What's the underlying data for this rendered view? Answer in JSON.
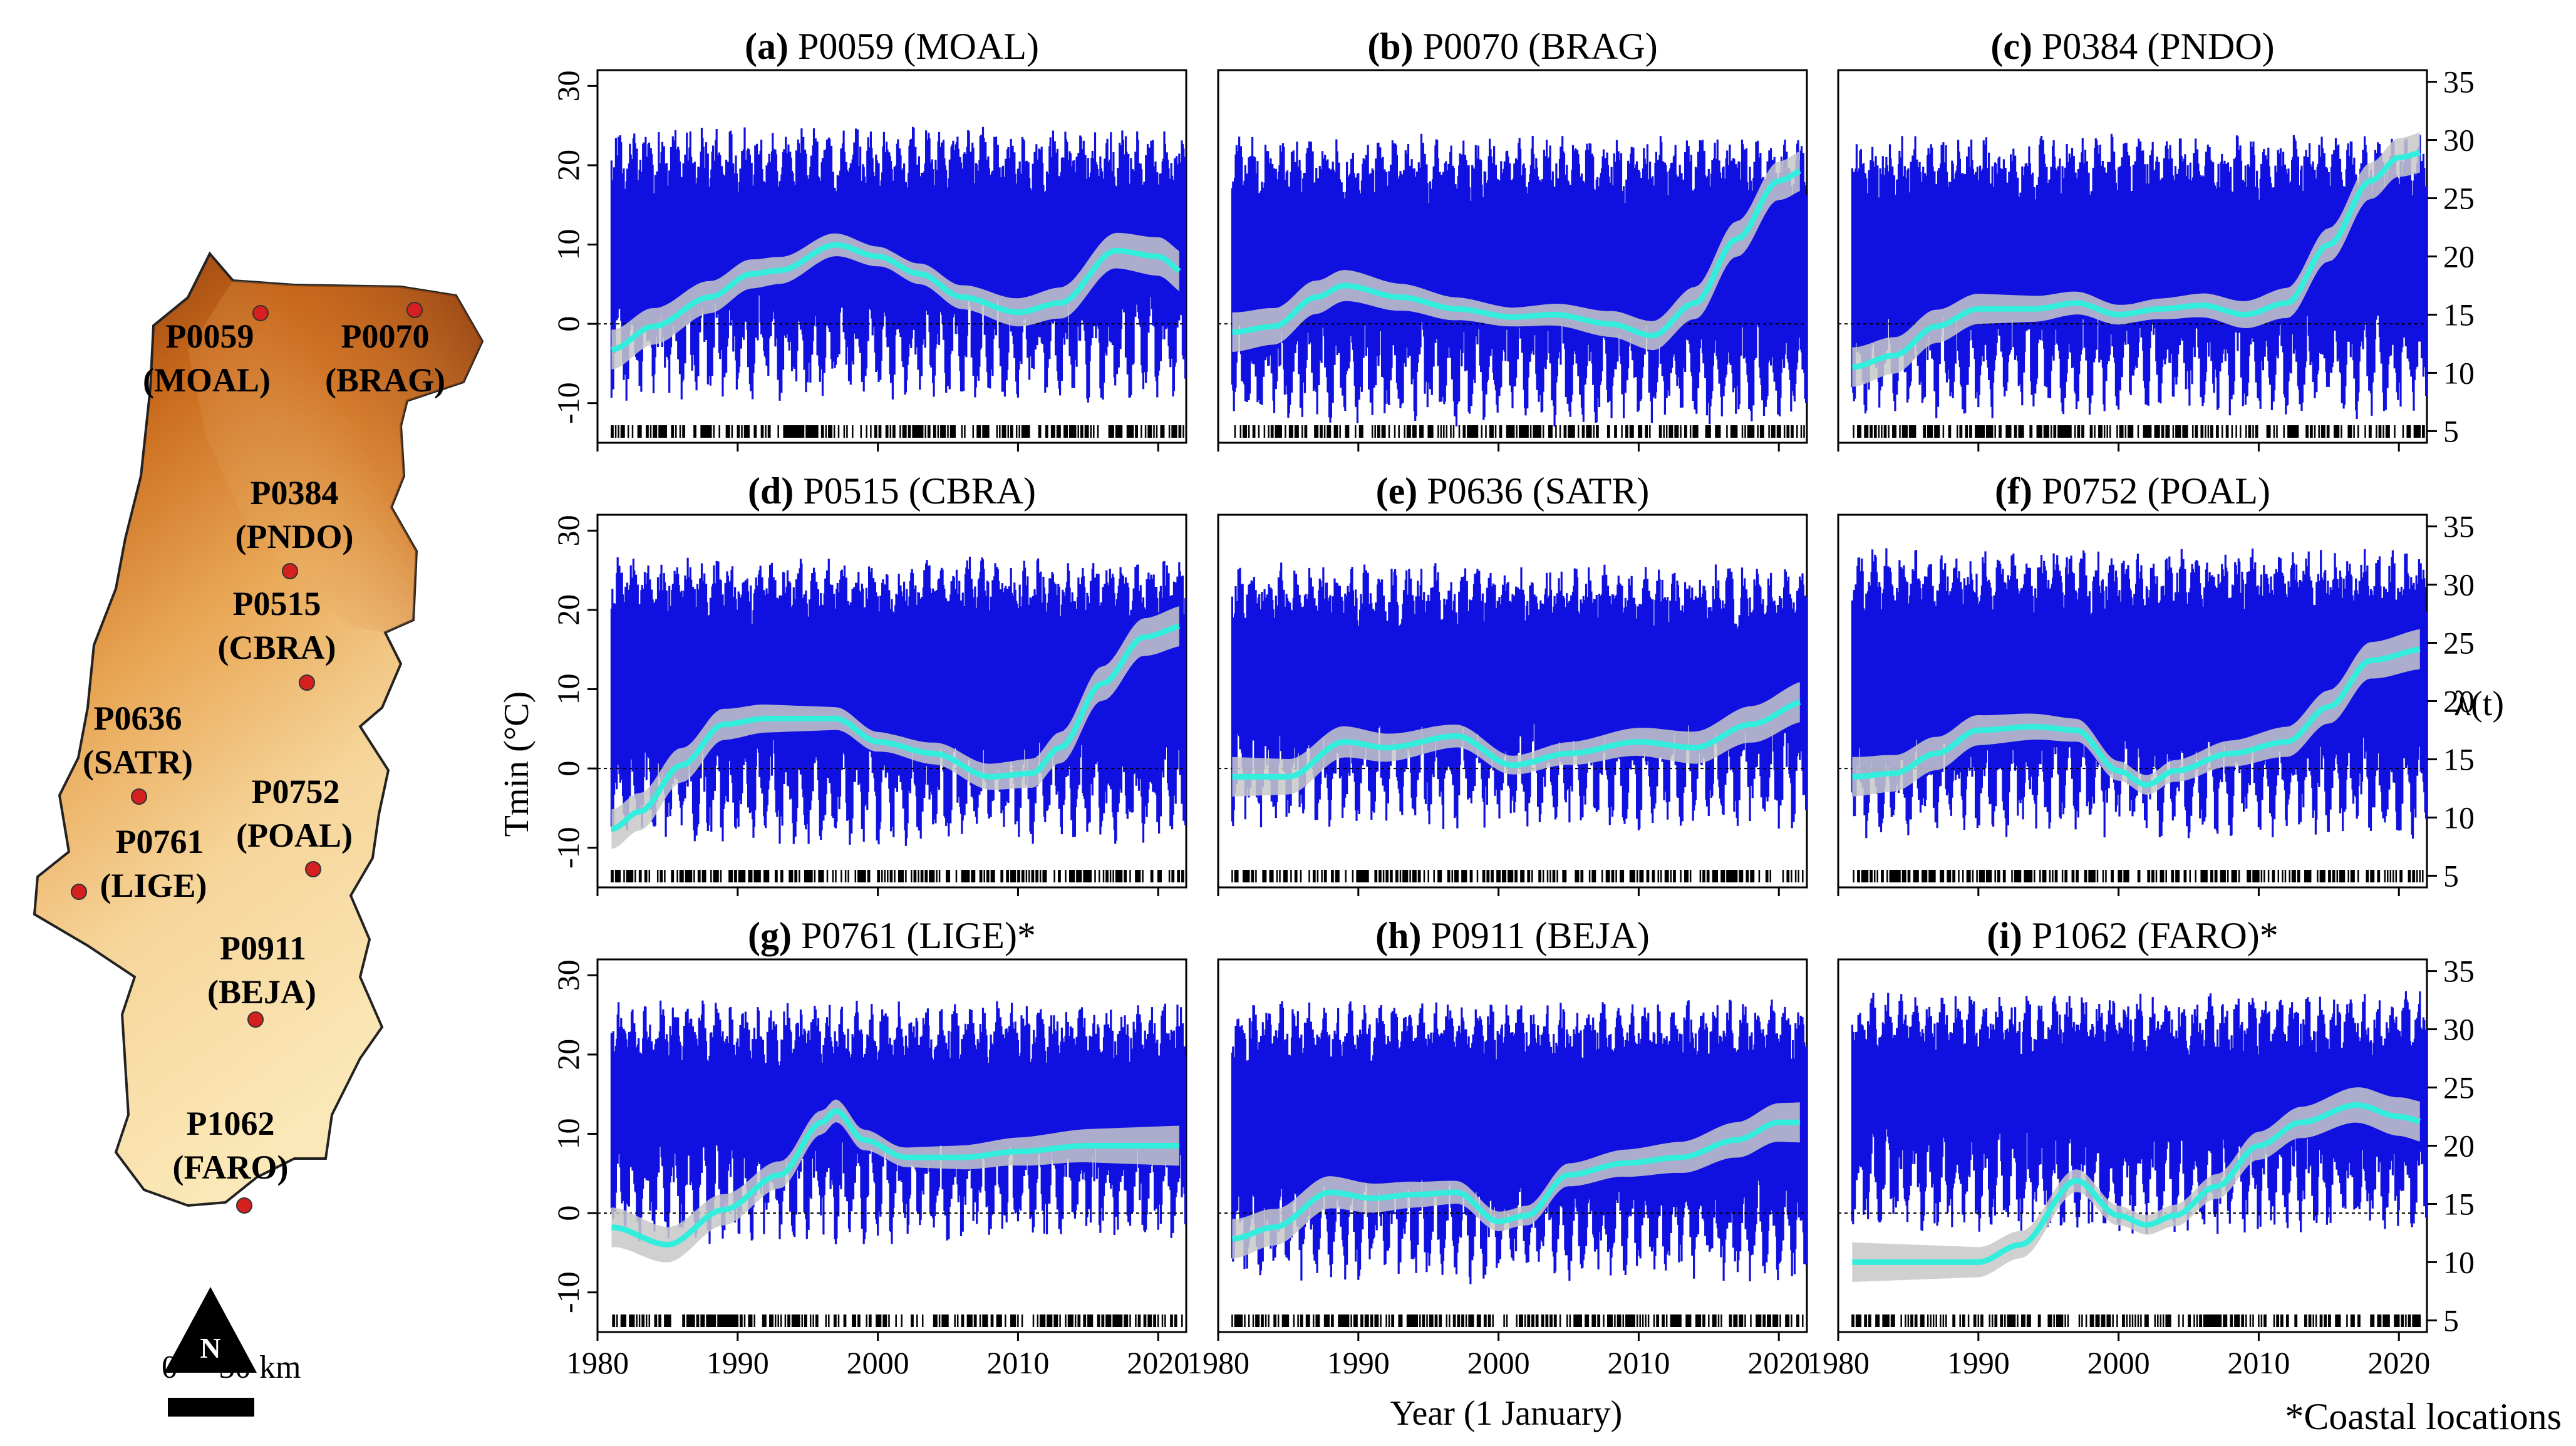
{
  "map": {
    "north_label": "N",
    "scale_label": "0     50 km",
    "stations": [
      {
        "code": "P0059",
        "abbr": "(MOAL)"
      },
      {
        "code": "P0070",
        "abbr": "(BRAG)"
      },
      {
        "code": "P0384",
        "abbr": "(PNDO)"
      },
      {
        "code": "P0515",
        "abbr": "(CBRA)"
      },
      {
        "code": "P0636",
        "abbr": "(SATR)"
      },
      {
        "code": "P0752",
        "abbr": "(POAL)"
      },
      {
        "code": "P0761",
        "abbr": "(LIGE)"
      },
      {
        "code": "P0911",
        "abbr": "(BEJA)"
      },
      {
        "code": "P1062",
        "abbr": "(FARO)"
      }
    ],
    "colors": {
      "low": "#fdf3c6",
      "mid": "#f0a24a",
      "high": "#8c3a0e",
      "station": "#d62020"
    }
  },
  "axes": {
    "xlabel": "Year (1 January)",
    "ylabel_left": "Tmin (°C)",
    "ylabel_right": "λ(t)",
    "footnote": "*Coastal locations",
    "x_ticks": [
      "1980",
      "1990",
      "2000",
      "2010",
      "2020"
    ],
    "y_left_ticks": [
      "-10",
      "0",
      "10",
      "20",
      "30"
    ],
    "y_right_ticks": [
      "5",
      "10",
      "15",
      "20",
      "25",
      "30",
      "35"
    ]
  },
  "colors": {
    "tmin": "#1010e0",
    "intensity": "#33eedd",
    "band": "#c8c8c8",
    "rug": "#000000"
  },
  "chart_data": [
    {
      "type": "line",
      "label": "(a)",
      "title": "P0059 (MOAL)",
      "xlim": [
        1980,
        2022
      ],
      "ylim": [
        -15,
        32
      ],
      "ylim_right": [
        4,
        36
      ],
      "series": [
        {
          "name": "Tmin (°C) daily range",
          "base_min": 0,
          "base_max": 18
        },
        {
          "name": "λ(t)",
          "x": [
            1981,
            1984,
            1988,
            1991,
            1993,
            1997,
            2000,
            2003,
            2006,
            2010,
            2013,
            2017,
            2020,
            2022
          ],
          "values": [
            12.0,
            14.0,
            16.5,
            18.5,
            18.8,
            21.0,
            20.0,
            18.5,
            16.5,
            15.2,
            16.0,
            20.5,
            20.0,
            18.5
          ]
        }
      ]
    },
    {
      "type": "line",
      "label": "(b)",
      "title": "P0070 (BRAG)",
      "xlim": [
        1980,
        2022
      ],
      "ylim": [
        -15,
        32
      ],
      "ylim_right": [
        4,
        36
      ],
      "series": [
        {
          "name": "Tmin (°C) daily range",
          "base_min": -3,
          "base_max": 17
        },
        {
          "name": "λ(t)",
          "x": [
            1981,
            1984,
            1987,
            1989,
            1993,
            1997,
            2001,
            2004,
            2008,
            2011,
            2014,
            2017,
            2020,
            2022
          ],
          "values": [
            13.5,
            14.0,
            16.5,
            17.5,
            16.5,
            15.5,
            14.8,
            15.0,
            14.2,
            13.2,
            16.0,
            21.5,
            26.5,
            27.5
          ]
        }
      ]
    },
    {
      "type": "line",
      "label": "(c)",
      "title": "P0384 (PNDO)",
      "xlim": [
        1980,
        2022
      ],
      "ylim": [
        -15,
        32
      ],
      "ylim_right": [
        4,
        36
      ],
      "series": [
        {
          "name": "Tmin (°C) daily range",
          "base_min": -2,
          "base_max": 17
        },
        {
          "name": "λ(t)",
          "x": [
            1981,
            1984,
            1987,
            1990,
            1994,
            1997,
            2000,
            2003,
            2006,
            2009,
            2012,
            2015,
            2018,
            2020,
            2022
          ],
          "values": [
            10.5,
            11.5,
            14.0,
            15.5,
            15.5,
            16.0,
            15.0,
            15.5,
            15.8,
            15.0,
            16.0,
            21.0,
            26.5,
            28.5,
            29.0
          ]
        }
      ]
    },
    {
      "type": "line",
      "label": "(d)",
      "title": "P0515 (CBRA)",
      "xlim": [
        1980,
        2022
      ],
      "ylim": [
        -15,
        32
      ],
      "ylim_right": [
        4,
        36
      ],
      "series": [
        {
          "name": "Tmin (°C) daily range",
          "base_min": 0,
          "base_max": 20
        },
        {
          "name": "λ(t)",
          "x": [
            1981,
            1983,
            1986,
            1989,
            1992,
            1997,
            2000,
            2004,
            2008,
            2011,
            2013,
            2016,
            2019,
            2022
          ],
          "values": [
            9.0,
            10.5,
            14.5,
            18.0,
            18.5,
            18.5,
            16.5,
            15.5,
            13.5,
            13.8,
            16.0,
            21.5,
            25.5,
            26.5
          ]
        }
      ]
    },
    {
      "type": "line",
      "label": "(e)",
      "title": "P0636 (SATR)",
      "xlim": [
        1980,
        2022
      ],
      "ylim": [
        -15,
        32
      ],
      "ylim_right": [
        4,
        36
      ],
      "series": [
        {
          "name": "Tmin (°C) daily range",
          "base_min": 2,
          "base_max": 19
        },
        {
          "name": "λ(t)",
          "x": [
            1981,
            1985,
            1989,
            1992,
            1997,
            2001,
            2005,
            2010,
            2014,
            2018,
            2022
          ],
          "values": [
            13.5,
            13.5,
            16.5,
            16.0,
            17.0,
            14.5,
            15.5,
            16.5,
            16.0,
            18.0,
            20.0
          ]
        }
      ]
    },
    {
      "type": "line",
      "label": "(f)",
      "title": "P0752 (POAL)",
      "xlim": [
        1980,
        2022
      ],
      "ylim": [
        -15,
        32
      ],
      "ylim_right": [
        4,
        36
      ],
      "series": [
        {
          "name": "Tmin (°C) daily range",
          "base_min": 1,
          "base_max": 21
        },
        {
          "name": "λ(t)",
          "x": [
            1981,
            1984,
            1987,
            1990,
            1994,
            1997,
            2000,
            2002,
            2004,
            2008,
            2012,
            2015,
            2018,
            2022
          ],
          "values": [
            13.5,
            13.8,
            15.5,
            17.5,
            17.8,
            17.5,
            14.0,
            12.8,
            14.0,
            15.5,
            16.5,
            19.5,
            23.5,
            24.5
          ]
        }
      ]
    },
    {
      "type": "line",
      "label": "(g)",
      "title": "P0761 (LIGE)*",
      "xlim": [
        1980,
        2022
      ],
      "ylim": [
        -15,
        32
      ],
      "ylim_right": [
        4,
        36
      ],
      "series": [
        {
          "name": "Tmin (°C) daily range",
          "base_min": 6,
          "base_max": 20
        },
        {
          "name": "λ(t)",
          "x": [
            1981,
            1985,
            1989,
            1993,
            1996,
            1997,
            1999,
            2002,
            2006,
            2010,
            2015,
            2019,
            2022
          ],
          "values": [
            13.0,
            11.5,
            14.5,
            17.5,
            22.0,
            23.0,
            20.5,
            19.0,
            19.0,
            19.5,
            20.0,
            20.0,
            20.0
          ]
        }
      ]
    },
    {
      "type": "line",
      "label": "(h)",
      "title": "P0911 (BEJA)",
      "xlim": [
        1980,
        2022
      ],
      "ylim": [
        -15,
        32
      ],
      "ylim_right": [
        4,
        36
      ],
      "series": [
        {
          "name": "Tmin (°C) daily range",
          "base_min": 1,
          "base_max": 20
        },
        {
          "name": "λ(t)",
          "x": [
            1981,
            1984,
            1988,
            1991,
            1994,
            1997,
            2000,
            2002,
            2005,
            2009,
            2013,
            2017,
            2020,
            2022
          ],
          "values": [
            12.0,
            13.0,
            16.0,
            15.5,
            15.8,
            16.0,
            13.5,
            14.0,
            17.5,
            18.5,
            19.0,
            20.5,
            22.0,
            22.0
          ]
        }
      ]
    },
    {
      "type": "line",
      "label": "(i)",
      "title": "P1062 (FARO)*",
      "xlim": [
        1980,
        2022
      ],
      "ylim": [
        -15,
        32
      ],
      "ylim_right": [
        4,
        36
      ],
      "series": [
        {
          "name": "Tmin (°C) daily range",
          "base_min": 7,
          "base_max": 21
        },
        {
          "name": "λ(t)",
          "x": [
            1981,
            1985,
            1990,
            1993,
            1997,
            2000,
            2002,
            2004,
            2007,
            2010,
            2013,
            2017,
            2020,
            2022
          ],
          "values": [
            10.0,
            10.0,
            10.0,
            11.5,
            17.0,
            14.0,
            13.2,
            14.0,
            16.5,
            20.0,
            22.0,
            23.5,
            22.5,
            22.0
          ]
        }
      ]
    }
  ]
}
